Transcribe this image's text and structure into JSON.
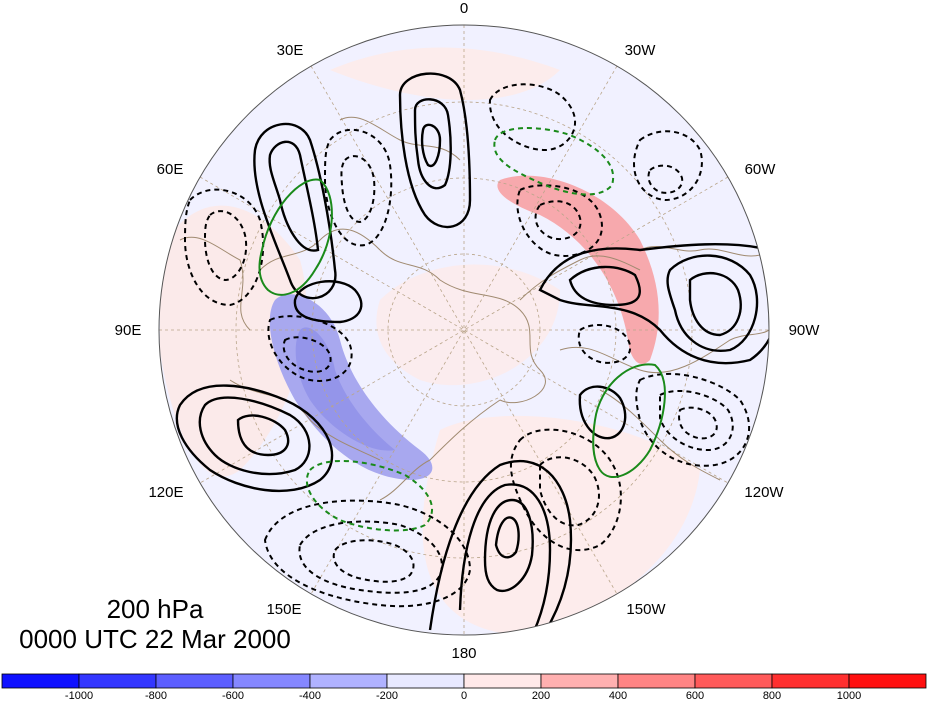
{
  "map": {
    "projection_labels": {
      "top": "0",
      "bottom": "180",
      "left": "90E",
      "right": "90W",
      "l30": "30E",
      "r30": "30W",
      "l60": "60E",
      "r60": "60W",
      "l120": "120E",
      "r120": "120W",
      "l150": "150E",
      "r150": "150W"
    },
    "level": "200 hPa",
    "time": "0000 UTC 22 Mar 2000"
  },
  "colorbar": {
    "labels": [
      "-1000",
      "-800",
      "-600",
      "-400",
      "-200",
      "0",
      "200",
      "400",
      "600",
      "800",
      "1000"
    ],
    "colors": [
      "#0f11ff",
      "#3336ff",
      "#5c5eff",
      "#8587ff",
      "#b0b2ff",
      "#e8e9ff",
      "#ffe9e9",
      "#ffb0b0",
      "#ff8484",
      "#ff5a5a",
      "#ff2f2f",
      "#ff1010"
    ]
  },
  "colors": {
    "positive_contour": "#000000",
    "negative_contour": "#000000",
    "highlight_contour": "#1a8a1a",
    "coastline": "#a08a70"
  }
}
